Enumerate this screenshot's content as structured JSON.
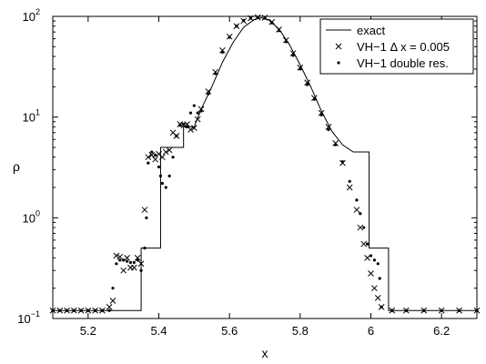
{
  "chart_data": {
    "type": "line",
    "xlabel": "x",
    "ylabel": "ρ",
    "xlim": [
      5.1,
      6.3
    ],
    "ylim": [
      0.1,
      100
    ],
    "yscale": "log",
    "grid": false,
    "legend_position": "top-right",
    "x_ticks": [
      {
        "value": 5.2,
        "label": "5.2"
      },
      {
        "value": 5.4,
        "label": "5.4"
      },
      {
        "value": 5.6,
        "label": "5.6"
      },
      {
        "value": 5.8,
        "label": "5.8"
      },
      {
        "value": 6.0,
        "label": "6"
      },
      {
        "value": 6.2,
        "label": "6.2"
      }
    ],
    "y_ticks": [
      {
        "value": 0.1,
        "base": "10",
        "exp": "−1"
      },
      {
        "value": 1,
        "base": "10",
        "exp": "0"
      },
      {
        "value": 10,
        "base": "10",
        "exp": "1"
      },
      {
        "value": 100,
        "base": "10",
        "exp": "2"
      }
    ],
    "series": [
      {
        "name": "exact",
        "style": "line",
        "x": [
          5.1,
          5.35,
          5.35,
          5.405,
          5.405,
          5.47,
          5.47,
          5.5,
          5.52,
          5.55,
          5.58,
          5.61,
          5.64,
          5.67,
          5.69,
          5.71,
          5.74,
          5.77,
          5.8,
          5.83,
          5.86,
          5.89,
          5.92,
          5.95,
          5.95,
          5.995,
          5.995,
          6.05,
          6.05,
          6.3
        ],
        "y": [
          0.12,
          0.12,
          0.5,
          0.5,
          5.0,
          5.0,
          8.0,
          8.0,
          12,
          20,
          35,
          55,
          78,
          93,
          97,
          93,
          75,
          52,
          33,
          20,
          11.5,
          7.2,
          5.3,
          4.5,
          4.5,
          4.5,
          0.5,
          0.5,
          0.12,
          0.12
        ]
      },
      {
        "name": "VH−1 Δ x = 0.005",
        "style": "cross",
        "x": [
          5.1,
          5.12,
          5.14,
          5.16,
          5.18,
          5.2,
          5.22,
          5.24,
          5.26,
          5.27,
          5.28,
          5.29,
          5.3,
          5.31,
          5.32,
          5.33,
          5.34,
          5.35,
          5.36,
          5.37,
          5.38,
          5.39,
          5.4,
          5.41,
          5.42,
          5.43,
          5.44,
          5.45,
          5.46,
          5.47,
          5.48,
          5.49,
          5.5,
          5.51,
          5.52,
          5.54,
          5.56,
          5.58,
          5.6,
          5.62,
          5.64,
          5.66,
          5.68,
          5.7,
          5.72,
          5.74,
          5.76,
          5.78,
          5.8,
          5.82,
          5.84,
          5.86,
          5.88,
          5.9,
          5.92,
          5.94,
          5.96,
          5.97,
          5.98,
          5.99,
          6.0,
          6.01,
          6.02,
          6.03,
          6.06,
          6.1,
          6.15,
          6.2,
          6.25,
          6.3
        ],
        "y": [
          0.12,
          0.12,
          0.12,
          0.12,
          0.12,
          0.12,
          0.12,
          0.12,
          0.13,
          0.15,
          0.42,
          0.41,
          0.3,
          0.4,
          0.32,
          0.32,
          0.4,
          0.35,
          1.2,
          4.0,
          4.2,
          3.8,
          4.3,
          4.0,
          4.5,
          4.7,
          7.0,
          6.5,
          8.5,
          8.3,
          8.5,
          7.5,
          7.8,
          9.5,
          12,
          18,
          28,
          46,
          63,
          80,
          90,
          96,
          98,
          97,
          88,
          74,
          58,
          43,
          31,
          22,
          15.5,
          11,
          8.0,
          5.5,
          3.5,
          2.0,
          1.2,
          0.8,
          0.55,
          0.4,
          0.28,
          0.2,
          0.16,
          0.13,
          0.12,
          0.12,
          0.12,
          0.12,
          0.12,
          0.12
        ]
      },
      {
        "name": "VH−1 double res.",
        "style": "dot",
        "x": [
          5.1,
          5.12,
          5.14,
          5.16,
          5.18,
          5.2,
          5.22,
          5.24,
          5.26,
          5.27,
          5.28,
          5.29,
          5.3,
          5.31,
          5.32,
          5.33,
          5.34,
          5.35,
          5.36,
          5.365,
          5.37,
          5.38,
          5.39,
          5.4,
          5.405,
          5.41,
          5.42,
          5.43,
          5.44,
          5.45,
          5.46,
          5.47,
          5.48,
          5.49,
          5.5,
          5.51,
          5.52,
          5.54,
          5.56,
          5.58,
          5.6,
          5.62,
          5.64,
          5.66,
          5.68,
          5.7,
          5.72,
          5.74,
          5.76,
          5.78,
          5.8,
          5.82,
          5.84,
          5.86,
          5.88,
          5.9,
          5.92,
          5.94,
          5.96,
          5.97,
          5.98,
          5.99,
          6.0,
          6.01,
          6.02,
          6.025,
          6.03,
          6.06,
          6.1,
          6.15,
          6.2,
          6.25,
          6.3
        ],
        "y": [
          0.12,
          0.12,
          0.12,
          0.12,
          0.12,
          0.12,
          0.12,
          0.12,
          0.12,
          0.2,
          0.35,
          0.38,
          0.38,
          0.37,
          0.36,
          0.36,
          0.38,
          0.3,
          0.5,
          1.0,
          3.5,
          4.5,
          4.2,
          3.2,
          2.6,
          2.2,
          2.0,
          2.6,
          4.0,
          6.5,
          8.3,
          8.5,
          8.0,
          11,
          13,
          11,
          11.5,
          17,
          27,
          44,
          62,
          80,
          91,
          96,
          98,
          96,
          86,
          72,
          56,
          41,
          30,
          21,
          15,
          10.5,
          7.5,
          5.3,
          3.6,
          2.3,
          1.5,
          1.1,
          0.8,
          0.55,
          0.42,
          0.38,
          0.35,
          0.25,
          0.13,
          0.12,
          0.12,
          0.12,
          0.12,
          0.12,
          0.12
        ]
      }
    ]
  }
}
